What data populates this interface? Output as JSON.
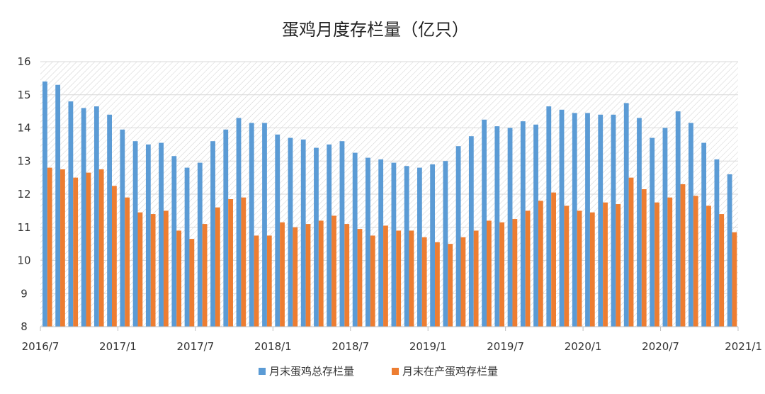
{
  "chart_data": {
    "type": "bar",
    "title": "蛋鸡月度存栏量（亿只）",
    "xlabel": "",
    "ylabel": "",
    "ylim": [
      8,
      16
    ],
    "yticks": [
      8,
      9,
      10,
      11,
      12,
      13,
      14,
      15,
      16
    ],
    "grid": true,
    "legend": "bottom",
    "xtick_labels": [
      "2016/7",
      "2017/1",
      "2017/7",
      "2018/1",
      "2018/7",
      "2019/1",
      "2019/7",
      "2020/1",
      "2020/7",
      "2021/1"
    ],
    "categories": [
      "2016/7",
      "2016/8",
      "2016/9",
      "2016/10",
      "2016/11",
      "2016/12",
      "2017/1",
      "2017/2",
      "2017/3",
      "2017/4",
      "2017/5",
      "2017/6",
      "2017/7",
      "2017/8",
      "2017/9",
      "2017/10",
      "2017/11",
      "2017/12",
      "2018/1",
      "2018/2",
      "2018/3",
      "2018/4",
      "2018/5",
      "2018/6",
      "2018/7",
      "2018/8",
      "2018/9",
      "2018/10",
      "2018/11",
      "2018/12",
      "2019/1",
      "2019/2",
      "2019/3",
      "2019/4",
      "2019/5",
      "2019/6",
      "2019/7",
      "2019/8",
      "2019/9",
      "2019/10",
      "2019/11",
      "2019/12",
      "2020/1",
      "2020/2",
      "2020/3",
      "2020/4",
      "2020/5",
      "2020/6",
      "2020/7",
      "2020/8",
      "2020/9",
      "2020/10",
      "2020/11",
      "2020/12"
    ],
    "series": [
      {
        "name": "月末蛋鸡总存栏量",
        "color": "#5b9bd5",
        "values": [
          15.4,
          15.3,
          14.8,
          14.6,
          14.65,
          14.4,
          13.95,
          13.6,
          13.5,
          13.55,
          13.15,
          12.8,
          12.95,
          13.6,
          13.95,
          14.3,
          14.15,
          14.15,
          13.8,
          13.7,
          13.65,
          13.4,
          13.5,
          13.6,
          13.25,
          13.1,
          13.05,
          12.95,
          12.85,
          12.8,
          12.9,
          13.0,
          13.45,
          13.75,
          14.25,
          14.05,
          14.0,
          14.2,
          14.1,
          14.65,
          14.55,
          14.45,
          14.45,
          14.4,
          14.4,
          14.75,
          14.3,
          13.7,
          14.0,
          14.5,
          14.15,
          13.55,
          13.05,
          12.6
        ]
      },
      {
        "name": "月末在产蛋鸡存栏量",
        "color": "#ed7d31",
        "values": [
          12.8,
          12.75,
          12.5,
          12.65,
          12.75,
          12.25,
          11.9,
          11.45,
          11.4,
          11.5,
          10.9,
          10.65,
          11.1,
          11.6,
          11.85,
          11.9,
          10.75,
          10.75,
          11.15,
          11.0,
          11.1,
          11.2,
          11.35,
          11.1,
          10.95,
          10.75,
          11.05,
          10.9,
          10.9,
          10.7,
          10.55,
          10.5,
          10.7,
          10.9,
          11.2,
          11.15,
          11.25,
          11.5,
          11.8,
          12.05,
          11.65,
          11.5,
          11.45,
          11.75,
          11.7,
          12.5,
          12.15,
          11.75,
          11.9,
          12.3,
          11.95,
          11.65,
          11.4,
          10.85
        ]
      }
    ]
  }
}
